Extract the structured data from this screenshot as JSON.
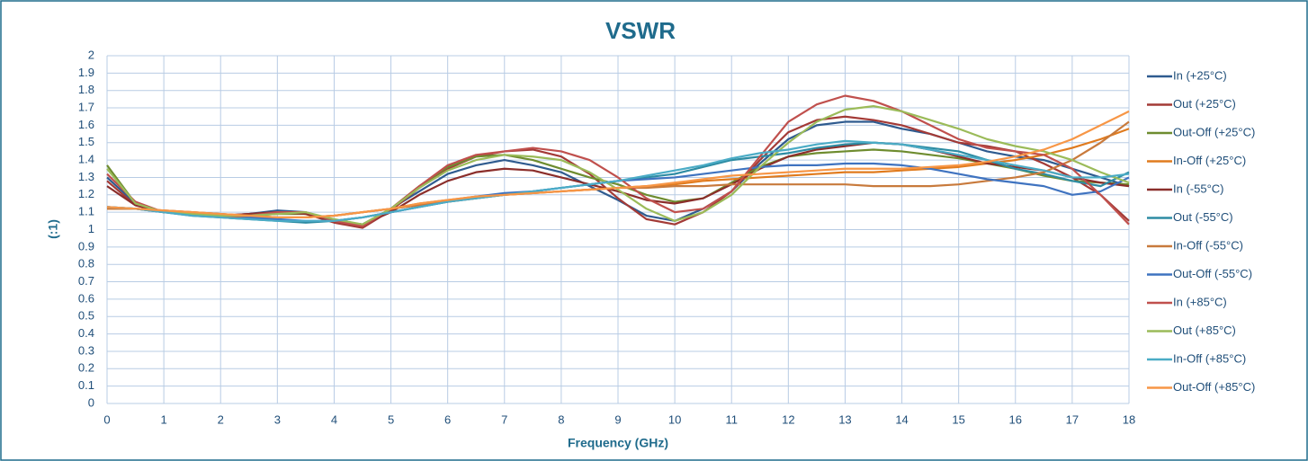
{
  "chart_data": {
    "type": "line",
    "title": "VSWR",
    "xlabel": "Frequency (GHz)",
    "ylabel": "(:1)",
    "x": [
      0,
      0.5,
      1,
      1.5,
      2,
      2.5,
      3,
      3.5,
      4,
      4.5,
      5,
      5.5,
      6,
      6.5,
      7,
      7.5,
      8,
      8.5,
      9,
      9.5,
      10,
      10.5,
      11,
      11.5,
      12,
      12.5,
      13,
      13.5,
      14,
      14.5,
      15,
      15.5,
      16,
      16.5,
      17,
      17.5,
      18
    ],
    "xlim": [
      0,
      18
    ],
    "xticks": [
      0,
      1,
      2,
      3,
      4,
      5,
      6,
      7,
      8,
      9,
      10,
      11,
      12,
      13,
      14,
      15,
      16,
      17,
      18
    ],
    "ylim": [
      0,
      2
    ],
    "yticks": [
      0,
      0.1,
      0.2,
      0.3,
      0.4,
      0.5,
      0.6,
      0.7,
      0.8,
      0.9,
      1,
      1.1,
      1.2,
      1.3,
      1.4,
      1.5,
      1.6,
      1.7,
      1.8,
      1.9,
      2
    ],
    "grid": true,
    "legend": "right",
    "series": [
      {
        "name": "In (+25°C)",
        "color": "#2f5b8f",
        "values": [
          1.3,
          1.15,
          1.1,
          1.09,
          1.08,
          1.09,
          1.11,
          1.1,
          1.05,
          1.03,
          1.12,
          1.22,
          1.32,
          1.37,
          1.4,
          1.37,
          1.33,
          1.25,
          1.17,
          1.08,
          1.05,
          1.12,
          1.22,
          1.38,
          1.52,
          1.6,
          1.62,
          1.62,
          1.58,
          1.55,
          1.5,
          1.45,
          1.42,
          1.4,
          1.35,
          1.3,
          1.25
        ]
      },
      {
        "name": "Out (+25°C)",
        "color": "#a33a36",
        "values": [
          1.28,
          1.14,
          1.1,
          1.09,
          1.08,
          1.09,
          1.1,
          1.09,
          1.04,
          1.01,
          1.11,
          1.24,
          1.35,
          1.42,
          1.45,
          1.46,
          1.42,
          1.32,
          1.18,
          1.06,
          1.03,
          1.1,
          1.22,
          1.4,
          1.56,
          1.63,
          1.65,
          1.63,
          1.6,
          1.55,
          1.5,
          1.48,
          1.45,
          1.38,
          1.3,
          1.2,
          1.05
        ]
      },
      {
        "name": "Out-Off (+25°C)",
        "color": "#6e8c2f",
        "values": [
          1.37,
          1.15,
          1.1,
          1.09,
          1.08,
          1.08,
          1.09,
          1.09,
          1.05,
          1.03,
          1.12,
          1.25,
          1.36,
          1.42,
          1.43,
          1.4,
          1.35,
          1.3,
          1.26,
          1.2,
          1.16,
          1.18,
          1.27,
          1.36,
          1.42,
          1.44,
          1.45,
          1.46,
          1.45,
          1.43,
          1.41,
          1.38,
          1.35,
          1.31,
          1.28,
          1.27,
          1.26
        ]
      },
      {
        "name": "In-Off (+25°C)",
        "color": "#e07b1e",
        "values": [
          1.12,
          1.12,
          1.11,
          1.1,
          1.09,
          1.08,
          1.07,
          1.07,
          1.08,
          1.1,
          1.12,
          1.15,
          1.17,
          1.19,
          1.2,
          1.21,
          1.22,
          1.23,
          1.24,
          1.25,
          1.26,
          1.28,
          1.29,
          1.3,
          1.31,
          1.32,
          1.33,
          1.33,
          1.34,
          1.35,
          1.36,
          1.38,
          1.4,
          1.43,
          1.47,
          1.52,
          1.58
        ]
      },
      {
        "name": "In (-55°C)",
        "color": "#8b2e2b",
        "values": [
          1.25,
          1.14,
          1.1,
          1.09,
          1.08,
          1.09,
          1.1,
          1.09,
          1.05,
          1.03,
          1.1,
          1.2,
          1.28,
          1.33,
          1.35,
          1.34,
          1.3,
          1.26,
          1.22,
          1.17,
          1.15,
          1.18,
          1.26,
          1.35,
          1.42,
          1.46,
          1.48,
          1.5,
          1.49,
          1.46,
          1.42,
          1.38,
          1.36,
          1.34,
          1.3,
          1.27,
          1.25
        ]
      },
      {
        "name": "Out (-55°C)",
        "color": "#2e8ca3",
        "values": [
          1.13,
          1.12,
          1.1,
          1.08,
          1.07,
          1.06,
          1.05,
          1.04,
          1.05,
          1.07,
          1.1,
          1.13,
          1.16,
          1.18,
          1.2,
          1.22,
          1.24,
          1.26,
          1.28,
          1.3,
          1.32,
          1.36,
          1.4,
          1.42,
          1.44,
          1.47,
          1.49,
          1.5,
          1.49,
          1.47,
          1.45,
          1.4,
          1.35,
          1.32,
          1.28,
          1.25,
          1.33
        ]
      },
      {
        "name": "In-Off (-55°C)",
        "color": "#c87a3c",
        "values": [
          1.12,
          1.12,
          1.11,
          1.1,
          1.09,
          1.08,
          1.07,
          1.07,
          1.08,
          1.1,
          1.12,
          1.14,
          1.16,
          1.18,
          1.2,
          1.21,
          1.22,
          1.23,
          1.24,
          1.24,
          1.25,
          1.25,
          1.26,
          1.26,
          1.26,
          1.26,
          1.26,
          1.25,
          1.25,
          1.25,
          1.26,
          1.28,
          1.3,
          1.33,
          1.4,
          1.5,
          1.62
        ]
      },
      {
        "name": "Out-Off (-55°C)",
        "color": "#3f73c0",
        "values": [
          1.13,
          1.12,
          1.1,
          1.09,
          1.08,
          1.07,
          1.06,
          1.05,
          1.05,
          1.07,
          1.1,
          1.13,
          1.16,
          1.19,
          1.21,
          1.22,
          1.24,
          1.26,
          1.28,
          1.29,
          1.3,
          1.32,
          1.34,
          1.36,
          1.37,
          1.37,
          1.38,
          1.38,
          1.37,
          1.35,
          1.32,
          1.29,
          1.27,
          1.25,
          1.2,
          1.22,
          1.3
        ]
      },
      {
        "name": "In (+85°C)",
        "color": "#c0504d",
        "values": [
          1.32,
          1.16,
          1.1,
          1.09,
          1.07,
          1.08,
          1.1,
          1.1,
          1.05,
          1.02,
          1.12,
          1.25,
          1.37,
          1.43,
          1.45,
          1.47,
          1.45,
          1.4,
          1.3,
          1.18,
          1.1,
          1.12,
          1.22,
          1.42,
          1.62,
          1.72,
          1.77,
          1.74,
          1.68,
          1.6,
          1.52,
          1.47,
          1.45,
          1.43,
          1.35,
          1.2,
          1.03
        ]
      },
      {
        "name": "Out (+85°C)",
        "color": "#9bbb59",
        "values": [
          1.35,
          1.15,
          1.1,
          1.09,
          1.08,
          1.08,
          1.09,
          1.1,
          1.06,
          1.03,
          1.12,
          1.24,
          1.34,
          1.4,
          1.43,
          1.42,
          1.4,
          1.33,
          1.23,
          1.12,
          1.05,
          1.1,
          1.2,
          1.36,
          1.5,
          1.62,
          1.69,
          1.71,
          1.68,
          1.63,
          1.58,
          1.52,
          1.48,
          1.45,
          1.4,
          1.33,
          1.27
        ]
      },
      {
        "name": "In-Off (+85°C)",
        "color": "#4bacc6",
        "values": [
          1.13,
          1.12,
          1.1,
          1.08,
          1.07,
          1.06,
          1.05,
          1.05,
          1.05,
          1.07,
          1.1,
          1.13,
          1.16,
          1.18,
          1.2,
          1.22,
          1.24,
          1.26,
          1.28,
          1.31,
          1.34,
          1.37,
          1.41,
          1.44,
          1.46,
          1.49,
          1.51,
          1.5,
          1.49,
          1.46,
          1.43,
          1.4,
          1.37,
          1.34,
          1.3,
          1.3,
          1.32
        ]
      },
      {
        "name": "Out-Off (+85°C)",
        "color": "#f79646",
        "values": [
          1.13,
          1.12,
          1.11,
          1.1,
          1.09,
          1.08,
          1.07,
          1.07,
          1.08,
          1.1,
          1.12,
          1.15,
          1.17,
          1.19,
          1.2,
          1.21,
          1.22,
          1.23,
          1.24,
          1.25,
          1.27,
          1.29,
          1.31,
          1.32,
          1.33,
          1.34,
          1.35,
          1.35,
          1.35,
          1.36,
          1.37,
          1.39,
          1.42,
          1.46,
          1.52,
          1.6,
          1.68
        ]
      }
    ]
  }
}
